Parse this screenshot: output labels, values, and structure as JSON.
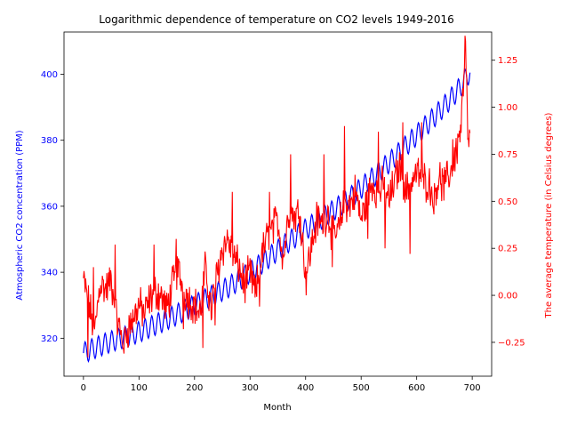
{
  "chart_data": {
    "type": "line",
    "title": "Logarithmic dependence of temperature on CO2 levels 1949-2016",
    "xlabel": "Month",
    "ylabel_left": "Atmospheric CO2 concentration (PPM)",
    "ylabel_right": "The average temperature (in Celsius degrees)",
    "xlim": [
      -35,
      735
    ],
    "ylim_left": [
      308.5,
      412.8
    ],
    "ylim_right": [
      -0.43,
      1.4
    ],
    "x_ticks": [
      0,
      100,
      200,
      300,
      400,
      500,
      600,
      700
    ],
    "y_left_ticks": [
      320,
      340,
      360,
      380,
      400
    ],
    "y_right_ticks": [
      -0.25,
      0.0,
      0.25,
      0.5,
      0.75,
      1.0,
      1.25
    ],
    "y_right_tick_labels": [
      "−0.25",
      "0.00",
      "0.25",
      "0.50",
      "0.75",
      "1.00",
      "1.25"
    ],
    "grid": false,
    "colors": {
      "co2": "#0000ff",
      "temperature": "#ff0000",
      "left_axis": "#0000ff",
      "right_axis": "#ff0000",
      "frame": "#000000"
    },
    "series": [
      {
        "name": "",
        "axis": "left",
        "color": "#0000ff",
        "points": [
          [
            0,
            315.5
          ],
          [
            20,
            317.0
          ],
          [
            40,
            318.4
          ],
          [
            60,
            319.6
          ],
          [
            80,
            320.7
          ],
          [
            100,
            321.9
          ],
          [
            120,
            323.4
          ],
          [
            140,
            324.9
          ],
          [
            160,
            326.5
          ],
          [
            180,
            328.2
          ],
          [
            200,
            330.0
          ],
          [
            220,
            331.8
          ],
          [
            240,
            333.6
          ],
          [
            260,
            335.4
          ],
          [
            280,
            337.6
          ],
          [
            300,
            340.0
          ],
          [
            320,
            342.6
          ],
          [
            340,
            345.3
          ],
          [
            360,
            348.0
          ],
          [
            380,
            350.5
          ],
          [
            400,
            353.0
          ],
          [
            420,
            355.3
          ],
          [
            440,
            357.5
          ],
          [
            460,
            360.0
          ],
          [
            480,
            362.6
          ],
          [
            500,
            365.5
          ],
          [
            520,
            368.5
          ],
          [
            540,
            371.6
          ],
          [
            560,
            374.8
          ],
          [
            580,
            378.2
          ],
          [
            600,
            381.6
          ],
          [
            620,
            385.0
          ],
          [
            640,
            388.6
          ],
          [
            660,
            392.3
          ],
          [
            680,
            396.4
          ],
          [
            695,
            400.5
          ]
        ],
        "seasonal_amplitude_ppm": 3.2
      },
      {
        "name": "",
        "axis": "right",
        "color": "#ff0000",
        "points": [
          [
            0,
            0.08
          ],
          [
            10,
            -0.05
          ],
          [
            20,
            -0.2
          ],
          [
            30,
            0.07
          ],
          [
            40,
            0.03
          ],
          [
            50,
            0.08
          ],
          [
            60,
            -0.13
          ],
          [
            70,
            -0.23
          ],
          [
            80,
            -0.18
          ],
          [
            90,
            -0.12
          ],
          [
            100,
            -0.05
          ],
          [
            110,
            -0.1
          ],
          [
            120,
            -0.02
          ],
          [
            130,
            0.02
          ],
          [
            140,
            0.0
          ],
          [
            150,
            -0.08
          ],
          [
            160,
            0.05
          ],
          [
            170,
            0.14
          ],
          [
            180,
            0.03
          ],
          [
            190,
            -0.02
          ],
          [
            200,
            -0.05
          ],
          [
            210,
            -0.1
          ],
          [
            220,
            0.15
          ],
          [
            230,
            -0.08
          ],
          [
            240,
            0.1
          ],
          [
            250,
            0.25
          ],
          [
            260,
            0.3
          ],
          [
            270,
            0.2
          ],
          [
            280,
            0.15
          ],
          [
            290,
            0.05
          ],
          [
            300,
            0.12
          ],
          [
            310,
            0.0
          ],
          [
            320,
            0.2
          ],
          [
            330,
            0.3
          ],
          [
            340,
            0.35
          ],
          [
            350,
            0.4
          ],
          [
            360,
            0.2
          ],
          [
            370,
            0.45
          ],
          [
            380,
            0.42
          ],
          [
            390,
            0.45
          ],
          [
            400,
            0.1
          ],
          [
            410,
            0.25
          ],
          [
            420,
            0.4
          ],
          [
            430,
            0.38
          ],
          [
            440,
            0.45
          ],
          [
            450,
            0.3
          ],
          [
            460,
            0.35
          ],
          [
            470,
            0.5
          ],
          [
            480,
            0.48
          ],
          [
            490,
            0.55
          ],
          [
            500,
            0.4
          ],
          [
            510,
            0.5
          ],
          [
            520,
            0.6
          ],
          [
            530,
            0.55
          ],
          [
            540,
            0.58
          ],
          [
            550,
            0.5
          ],
          [
            560,
            0.6
          ],
          [
            570,
            0.7
          ],
          [
            580,
            0.55
          ],
          [
            590,
            0.6
          ],
          [
            600,
            0.65
          ],
          [
            610,
            0.62
          ],
          [
            620,
            0.6
          ],
          [
            630,
            0.55
          ],
          [
            640,
            0.62
          ],
          [
            650,
            0.58
          ],
          [
            660,
            0.65
          ],
          [
            670,
            0.75
          ],
          [
            680,
            0.9
          ],
          [
            685,
            1.15
          ],
          [
            688,
            1.3
          ],
          [
            692,
            0.85
          ],
          [
            696,
            0.82
          ]
        ],
        "spikes": [
          [
            8,
            -0.33
          ],
          [
            18,
            0.15
          ],
          [
            57,
            0.27
          ],
          [
            73,
            -0.31
          ],
          [
            127,
            0.27
          ],
          [
            167,
            0.3
          ],
          [
            180,
            -0.18
          ],
          [
            215,
            -0.28
          ],
          [
            237,
            -0.16
          ],
          [
            268,
            0.55
          ],
          [
            317,
            -0.06
          ],
          [
            335,
            0.55
          ],
          [
            373,
            0.75
          ],
          [
            401,
            0.0
          ],
          [
            433,
            0.75
          ],
          [
            448,
            0.15
          ],
          [
            470,
            0.9
          ],
          [
            512,
            0.3
          ],
          [
            531,
            0.87
          ],
          [
            543,
            0.25
          ],
          [
            575,
            0.92
          ],
          [
            588,
            0.22
          ],
          [
            609,
            0.92
          ],
          [
            631,
            0.43
          ],
          [
            665,
            0.83
          ],
          [
            687,
            1.38
          ]
        ]
      }
    ]
  }
}
